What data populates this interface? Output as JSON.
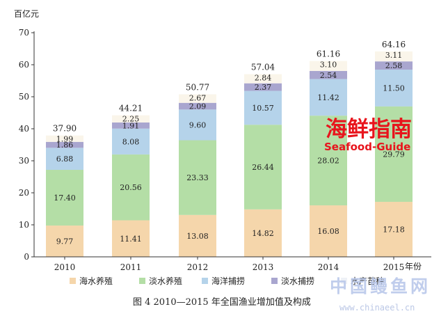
{
  "chart_data": {
    "type": "bar",
    "stacked": true,
    "title": "图 4    2010—2015 年全国渔业增加值及构成",
    "ylabel": "百亿元",
    "xlabel": "年份",
    "ylim": [
      0,
      70
    ],
    "yticks": [
      0,
      10,
      20,
      30,
      40,
      50,
      60,
      70
    ],
    "categories": [
      "2010",
      "2011",
      "2012",
      "2013",
      "2014",
      "2015"
    ],
    "series": [
      {
        "name": "海水养殖",
        "color": "#f5d6ab",
        "values": [
          9.77,
          11.41,
          13.08,
          14.82,
          16.08,
          17.18
        ]
      },
      {
        "name": "淡水养殖",
        "color": "#b4dea6",
        "values": [
          17.4,
          20.56,
          23.33,
          26.44,
          28.02,
          29.79
        ]
      },
      {
        "name": "海洋捕捞",
        "color": "#b5d3ea",
        "values": [
          6.88,
          8.08,
          9.6,
          10.57,
          11.42,
          11.5
        ]
      },
      {
        "name": "淡水捕捞",
        "color": "#a9a6cf",
        "values": [
          1.86,
          1.91,
          2.09,
          2.37,
          2.54,
          2.58
        ]
      },
      {
        "name": "水产苗种",
        "color": "#faf5ea",
        "values": [
          1.99,
          2.25,
          2.67,
          2.84,
          3.1,
          3.11
        ]
      }
    ],
    "totals": [
      37.9,
      44.21,
      50.77,
      57.04,
      61.16,
      64.16
    ],
    "legend_position": "bottom",
    "grid": false
  },
  "watermark": {
    "brand_cn": "海鲜指南",
    "brand_en": "Seafood-Guide",
    "site_cn": "中国鳗鱼网",
    "site_url": "www.chinaeel.cn"
  }
}
